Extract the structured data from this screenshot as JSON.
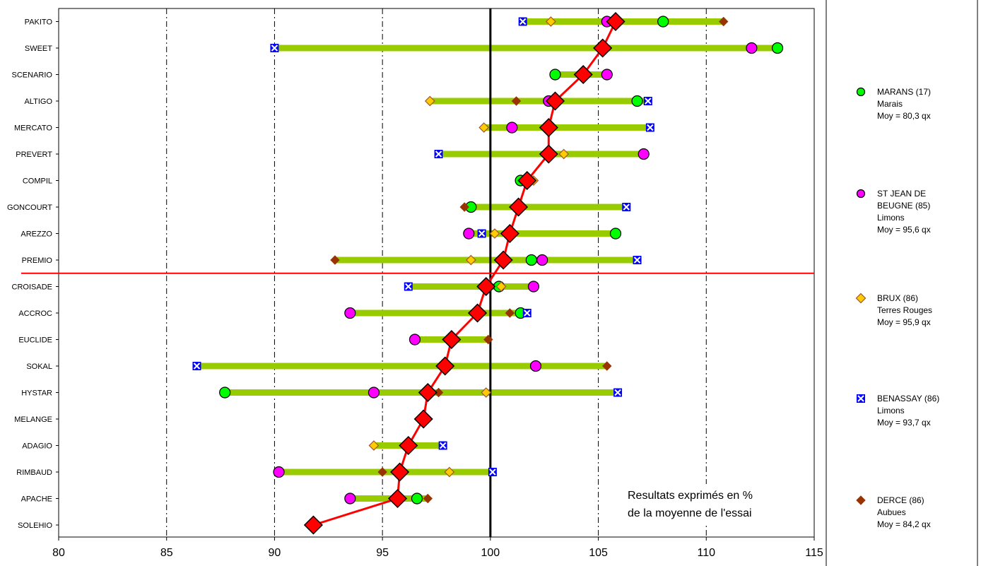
{
  "chart_data": {
    "type": "scatter",
    "title": "",
    "xlabel": "",
    "ylabel": "",
    "xlim": [
      80,
      115
    ],
    "x_ticks": [
      "80",
      "85",
      "90",
      "95",
      "100",
      "105",
      "110",
      "115"
    ],
    "reference_line": 100,
    "separator_after": "PREMIO",
    "annotation_lines": [
      "Resultats exprimés en %",
      "de la moyenne de l'essai"
    ],
    "colors": {
      "range_bar": "#99cc00",
      "mean": "#ff0000",
      "MARANS": "#00ff00",
      "ST_JEAN": "#ff00ff",
      "BRUX": "#ffcc00",
      "BENASSAY": "#0000ff",
      "DERCE": "#993300"
    },
    "sites": [
      {
        "key": "MARANS",
        "marker": "circle",
        "legend_lines": [
          "MARANS (17)",
          "Marais",
          "Moy = 80,3 qx"
        ]
      },
      {
        "key": "ST_JEAN",
        "marker": "circle",
        "legend_lines": [
          "ST JEAN DE",
          "BEUGNE (85)",
          "Limons",
          "Moy = 95,6 qx"
        ]
      },
      {
        "key": "BRUX",
        "marker": "diamond",
        "legend_lines": [
          "BRUX (86)",
          "Terres Rouges",
          "Moy = 95,9 qx"
        ]
      },
      {
        "key": "BENASSAY",
        "marker": "xsquare",
        "legend_lines": [
          "BENASSAY (86)",
          "Limons",
          "Moy = 93,7 qx"
        ]
      },
      {
        "key": "DERCE",
        "marker": "smalldiamond",
        "legend_lines": [
          "DERCE (86)",
          "Aubues",
          "Moy = 84,2 qx"
        ]
      }
    ],
    "varieties": [
      {
        "name": "PAKITO",
        "mean": 105.8,
        "MARANS": 108.0,
        "ST_JEAN": 105.4,
        "BRUX": 102.8,
        "BENASSAY": 101.5,
        "DERCE": 110.8
      },
      {
        "name": "SWEET",
        "mean": 105.2,
        "MARANS": 113.3,
        "ST_JEAN": 112.1,
        "BRUX": null,
        "BENASSAY": 90.0,
        "DERCE": null
      },
      {
        "name": "SCENARIO",
        "mean": 104.3,
        "MARANS": 103.0,
        "ST_JEAN": 105.4,
        "BRUX": null,
        "BENASSAY": null,
        "DERCE": null
      },
      {
        "name": "ALTIGO",
        "mean": 103.0,
        "MARANS": 106.8,
        "ST_JEAN": 102.7,
        "BRUX": 97.2,
        "BENASSAY": 107.3,
        "DERCE": 101.2
      },
      {
        "name": "MERCATO",
        "mean": 102.7,
        "MARANS": null,
        "ST_JEAN": 101.0,
        "BRUX": 99.7,
        "BENASSAY": 107.4,
        "DERCE": null
      },
      {
        "name": "PREVERT",
        "mean": 102.7,
        "MARANS": null,
        "ST_JEAN": 107.1,
        "BRUX": 103.4,
        "BENASSAY": 97.6,
        "DERCE": null
      },
      {
        "name": "COMPIL",
        "mean": 101.7,
        "MARANS": 101.4,
        "ST_JEAN": null,
        "BRUX": 102.0,
        "BENASSAY": null,
        "DERCE": null
      },
      {
        "name": "GONCOURT",
        "mean": 101.3,
        "MARANS": 99.1,
        "ST_JEAN": null,
        "BRUX": null,
        "BENASSAY": 106.3,
        "DERCE": 98.8
      },
      {
        "name": "AREZZO",
        "mean": 100.9,
        "MARANS": 105.8,
        "ST_JEAN": 99.0,
        "BRUX": 100.2,
        "BENASSAY": 99.6,
        "DERCE": null
      },
      {
        "name": "PREMIO",
        "mean": 100.6,
        "MARANS": 101.9,
        "ST_JEAN": 102.4,
        "BRUX": 99.1,
        "BENASSAY": 106.8,
        "DERCE": 92.8
      },
      {
        "name": "CROISADE",
        "mean": 99.8,
        "MARANS": 100.4,
        "ST_JEAN": 102.0,
        "BRUX": 100.5,
        "BENASSAY": 96.2,
        "DERCE": null
      },
      {
        "name": "ACCROC",
        "mean": 99.4,
        "MARANS": 101.4,
        "ST_JEAN": 93.5,
        "BRUX": null,
        "BENASSAY": 101.7,
        "DERCE": 100.9
      },
      {
        "name": "EUCLIDE",
        "mean": 98.2,
        "MARANS": null,
        "ST_JEAN": 96.5,
        "BRUX": null,
        "BENASSAY": null,
        "DERCE": 99.9
      },
      {
        "name": "SOKAL",
        "mean": 97.9,
        "MARANS": null,
        "ST_JEAN": 102.1,
        "BRUX": null,
        "BENASSAY": 86.4,
        "DERCE": 105.4
      },
      {
        "name": "HYSTAR",
        "mean": 97.1,
        "MARANS": 87.7,
        "ST_JEAN": 94.6,
        "BRUX": 99.8,
        "BENASSAY": 105.9,
        "DERCE": 97.6
      },
      {
        "name": "MELANGE",
        "mean": 96.9,
        "MARANS": null,
        "ST_JEAN": null,
        "BRUX": null,
        "BENASSAY": null,
        "DERCE": null
      },
      {
        "name": "ADAGIO",
        "mean": 96.2,
        "MARANS": null,
        "ST_JEAN": null,
        "BRUX": 94.6,
        "BENASSAY": 97.8,
        "DERCE": null
      },
      {
        "name": "RIMBAUD",
        "mean": 95.8,
        "MARANS": null,
        "ST_JEAN": 90.2,
        "BRUX": 98.1,
        "BENASSAY": 100.1,
        "DERCE": 95.0
      },
      {
        "name": "APACHE",
        "mean": 95.7,
        "MARANS": 96.6,
        "ST_JEAN": 93.5,
        "BRUX": null,
        "BENASSAY": null,
        "DERCE": 97.1
      },
      {
        "name": "SOLEHIO",
        "mean": 91.8,
        "MARANS": null,
        "ST_JEAN": null,
        "BRUX": null,
        "BENASSAY": null,
        "DERCE": null
      }
    ]
  }
}
